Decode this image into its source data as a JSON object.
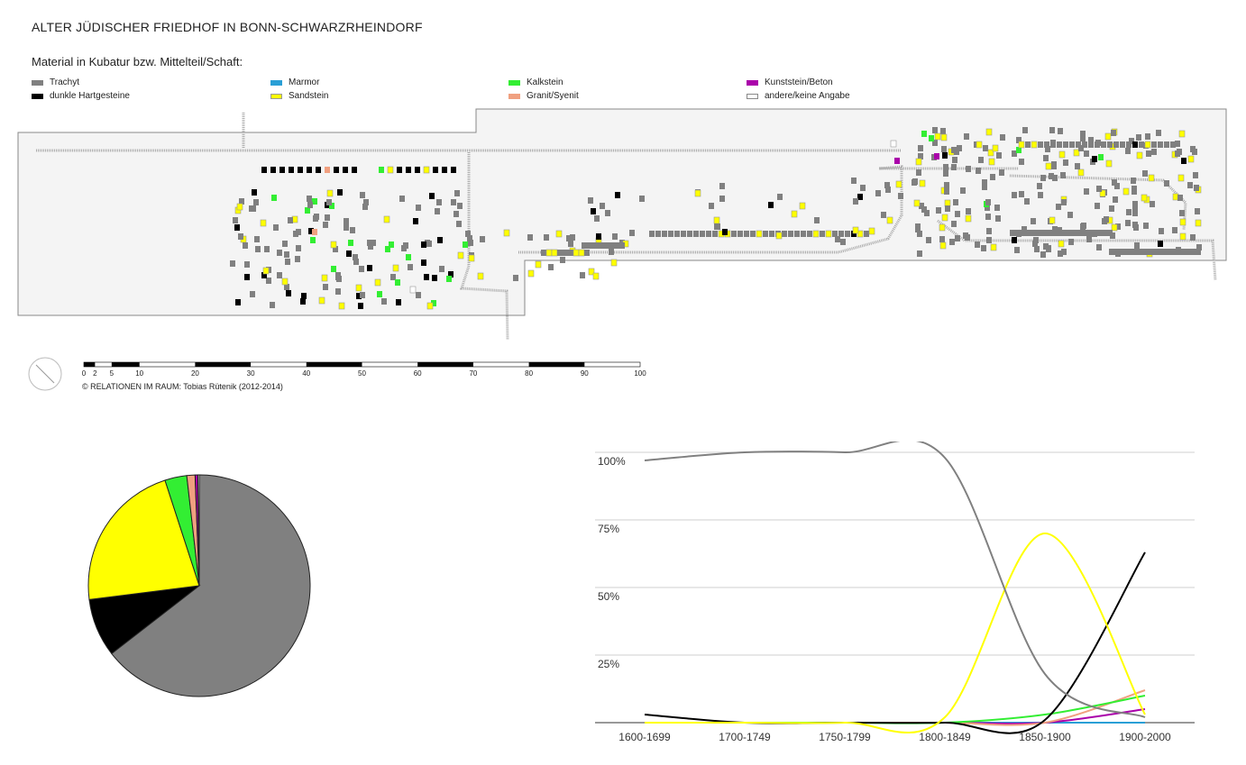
{
  "header": {
    "title": "ALTER JÜDISCHER FRIEDHOF IN BONN-SCHWARZRHEINDORF",
    "subtitle": "Material in Kubatur bzw. Mittelteil/Schaft:"
  },
  "legend": [
    {
      "label": "Trachyt",
      "color": "#808080"
    },
    {
      "label": "dunkle Hartgesteine",
      "color": "#000000"
    },
    {
      "label": "Marmor",
      "color": "#2a9fd6"
    },
    {
      "label": "Sandstein",
      "color": "#ffff00"
    },
    {
      "label": "Kalkstein",
      "color": "#33ee33"
    },
    {
      "label": "Granit/Syenit",
      "color": "#f0a080"
    },
    {
      "label": "Kunststein/Beton",
      "color": "#aa00aa"
    },
    {
      "label": "andere/keine Angabe",
      "color": "#ffffff"
    }
  ],
  "scale": {
    "ticks": [
      "0",
      "2",
      "5",
      "10",
      "20",
      "30",
      "40",
      "50",
      "60",
      "70",
      "80",
      "90",
      "100"
    ]
  },
  "copyright": "© RELATIONEN IM RAUM: Tobias Rütenik (2012-2014)",
  "chart_data": [
    {
      "type": "pie",
      "slices": [
        {
          "label": "Trachyt",
          "value": 64.5
        },
        {
          "label": "dunkle Hartgesteine",
          "value": 8.5
        },
        {
          "label": "Sandstein",
          "value": 22.0
        },
        {
          "label": "Kalkstein",
          "value": 3.2
        },
        {
          "label": "Granit/Syenit",
          "value": 1.2
        },
        {
          "label": "Kunststein/Beton",
          "value": 0.4
        },
        {
          "label": "andere/keine Angabe",
          "value": 0.2
        }
      ]
    },
    {
      "type": "line",
      "categories": [
        "1600-1699",
        "1700-1749",
        "1750-1799",
        "1800-1849",
        "1850-1900",
        "1900-2000"
      ],
      "yticks": [
        "100%",
        "75%",
        "50%",
        "25%"
      ],
      "ylim": [
        0,
        100
      ],
      "series": [
        {
          "name": "Trachyt",
          "values": [
            97,
            100,
            100,
            98,
            18,
            2
          ]
        },
        {
          "name": "dunkle Hartgesteine",
          "values": [
            3,
            0,
            0,
            0,
            1,
            63
          ]
        },
        {
          "name": "Sandstein",
          "values": [
            0,
            0,
            0,
            2,
            70,
            3
          ]
        },
        {
          "name": "Kalkstein",
          "values": [
            0,
            0,
            0,
            0,
            3,
            10
          ]
        },
        {
          "name": "Granit/Syenit",
          "values": [
            0,
            0,
            0,
            0,
            0,
            12
          ]
        },
        {
          "name": "Kunststein/Beton",
          "values": [
            0,
            0,
            0,
            0,
            0,
            5
          ]
        },
        {
          "name": "Marmor",
          "values": [
            0,
            0,
            0,
            0,
            0,
            0
          ]
        }
      ]
    }
  ]
}
